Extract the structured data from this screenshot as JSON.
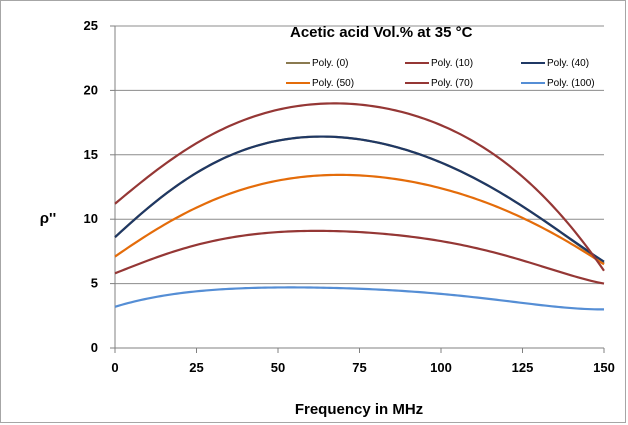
{
  "chart_data": {
    "type": "line",
    "title": "Acetic acid Vol.% at 35 °C",
    "xlabel": "Frequency in MHz",
    "ylabel": "ρ''",
    "xlim": [
      0,
      150
    ],
    "ylim": [
      0,
      25
    ],
    "xticks": [
      0,
      25,
      50,
      75,
      100,
      125,
      150
    ],
    "yticks": [
      0,
      5,
      10,
      15,
      20,
      25
    ],
    "grid": "horizontal",
    "legend_position": "top-right",
    "x": [
      0,
      25,
      50,
      75,
      100,
      125,
      150
    ],
    "series": [
      {
        "name": "Poly. (0)",
        "color": "#8a7a50",
        "values": [
          8.6,
          13.6,
          16.1,
          16.2,
          14.4,
          11.0,
          6.6
        ]
      },
      {
        "name": "Poly. (10)",
        "color": "#953735",
        "values": [
          5.8,
          8.0,
          9.0,
          9.0,
          8.3,
          6.8,
          5.0
        ]
      },
      {
        "name": "Poly. (40)",
        "color": "#1f3864",
        "values": [
          8.6,
          13.6,
          16.1,
          16.2,
          14.4,
          11.0,
          6.7
        ]
      },
      {
        "name": "Poly. (50)",
        "color": "#e46c0a",
        "values": [
          7.1,
          10.9,
          13.0,
          13.4,
          12.4,
          10.1,
          6.5
        ]
      },
      {
        "name": "Poly. (70)",
        "color": "#953735",
        "values": [
          11.2,
          15.9,
          18.5,
          18.9,
          17.3,
          13.3,
          6.0
        ]
      },
      {
        "name": "Poly. (100)",
        "color": "#558ed5",
        "values": [
          3.2,
          4.4,
          4.7,
          4.6,
          4.2,
          3.5,
          3.0
        ]
      }
    ]
  }
}
